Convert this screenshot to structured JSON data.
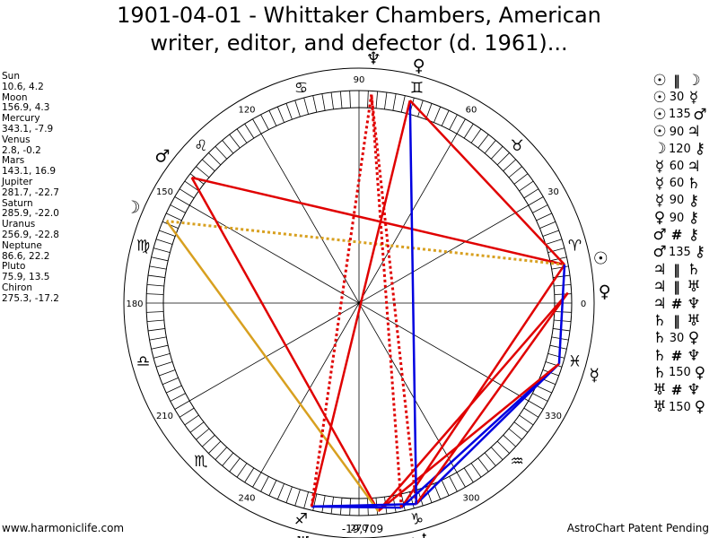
{
  "title": {
    "line1": "1901-04-01 - Whittaker Chambers, American",
    "line2": "writer, editor, and defector (d. 1961)..."
  },
  "positions": [
    {
      "name": "Sun",
      "values": "10.6, 4.2",
      "longitude": 10.6
    },
    {
      "name": "Moon",
      "values": "156.9, 4.3",
      "longitude": 156.9
    },
    {
      "name": "Mercury",
      "values": "343.1, -7.9",
      "longitude": 343.1
    },
    {
      "name": "Venus",
      "values": "2.8, -0.2",
      "longitude": 2.8
    },
    {
      "name": "Mars",
      "values": "143.1, 16.9",
      "longitude": 143.1
    },
    {
      "name": "Jupiter",
      "values": "281.7, -22.7",
      "longitude": 281.7
    },
    {
      "name": "Saturn",
      "values": "285.9, -22.0",
      "longitude": 285.9
    },
    {
      "name": "Uranus",
      "values": "256.9, -22.8",
      "longitude": 256.9
    },
    {
      "name": "Neptune",
      "values": "86.6, 22.2",
      "longitude": 86.6
    },
    {
      "name": "Pluto",
      "values": "75.9, 13.5",
      "longitude": 75.9
    },
    {
      "name": "Chiron",
      "values": "275.3, -17.2",
      "longitude": 275.3
    }
  ],
  "aspects": [
    {
      "p1": "☉",
      "asp": "‖",
      "p2": "☽",
      "sym": true
    },
    {
      "p1": "☉",
      "asp": "30",
      "p2": "☿",
      "sym": false
    },
    {
      "p1": "☉",
      "asp": "135",
      "p2": "♂",
      "sym": false
    },
    {
      "p1": "☉",
      "asp": "90",
      "p2": "♃",
      "sym": false
    },
    {
      "p1": "☽",
      "asp": "120",
      "p2": "⚷",
      "sym": false
    },
    {
      "p1": "☿",
      "asp": "60",
      "p2": "♃",
      "sym": false
    },
    {
      "p1": "☿",
      "asp": "60",
      "p2": "♄",
      "sym": false
    },
    {
      "p1": "☿",
      "asp": "90",
      "p2": "⚷",
      "sym": false
    },
    {
      "p1": "♀",
      "asp": "90",
      "p2": "⚷",
      "sym": false
    },
    {
      "p1": "♂",
      "asp": "#",
      "p2": "⚷",
      "sym": true
    },
    {
      "p1": "♂",
      "asp": "135",
      "p2": "⚷",
      "sym": false
    },
    {
      "p1": "♃",
      "asp": "‖",
      "p2": "♄",
      "sym": true
    },
    {
      "p1": "♃",
      "asp": "‖",
      "p2": "♅",
      "sym": true
    },
    {
      "p1": "♃",
      "asp": "#",
      "p2": "♆",
      "sym": true
    },
    {
      "p1": "♄",
      "asp": "‖",
      "p2": "♅",
      "sym": true
    },
    {
      "p1": "♄",
      "asp": "30",
      "p2": "♀",
      "sym": false
    },
    {
      "p1": "♄",
      "asp": "#",
      "p2": "♆",
      "sym": true
    },
    {
      "p1": "♄",
      "asp": "150",
      "p2": "♀",
      "sym": false
    },
    {
      "p1": "♅",
      "asp": "#",
      "p2": "♆",
      "sym": true
    },
    {
      "p1": "♅",
      "asp": "150",
      "p2": "♀",
      "sym": false
    }
  ],
  "wheel": {
    "degree_labels": [
      "0",
      "30",
      "60",
      "90",
      "120",
      "150",
      "180",
      "210",
      "240",
      "270",
      "300",
      "330"
    ],
    "degree_values": [
      0,
      30,
      60,
      90,
      120,
      150,
      180,
      210,
      240,
      270,
      300,
      330
    ],
    "sign_glyphs": [
      "♈",
      "♉",
      "♊",
      "♋",
      "♌",
      "♍",
      "♎",
      "♏",
      "♐",
      "♑",
      "♒",
      "♓"
    ],
    "planet_glyphs": [
      {
        "name": "sun",
        "glyph": "☉",
        "longitude": 10.6
      },
      {
        "name": "moon",
        "glyph": "☽",
        "longitude": 156.9
      },
      {
        "name": "mercury",
        "glyph": "☿",
        "longitude": 343.1
      },
      {
        "name": "venus",
        "glyph": "♀",
        "longitude": 2.8
      },
      {
        "name": "mars",
        "glyph": "♂",
        "longitude": 143.1
      },
      {
        "name": "jupiter",
        "glyph": "♃",
        "longitude": 281.7
      },
      {
        "name": "saturn",
        "glyph": "♄",
        "longitude": 285.9
      },
      {
        "name": "uranus",
        "glyph": "♅",
        "longitude": 256.9
      },
      {
        "name": "neptune",
        "glyph": "♆",
        "longitude": 86.6
      },
      {
        "name": "pluto",
        "glyph": "♀",
        "longitude": 75.9
      },
      {
        "name": "chiron",
        "glyph": "⚷",
        "longitude": 275.3
      }
    ],
    "center_readout": "-19,709",
    "aspect_lines": [
      {
        "from": 10.6,
        "to": 143.1,
        "color": "#e00000",
        "style": "solid"
      },
      {
        "from": 10.6,
        "to": 156.9,
        "color": "#d8a020",
        "style": "dotted"
      },
      {
        "from": 10.6,
        "to": 281.7,
        "color": "#e00000",
        "style": "solid"
      },
      {
        "from": 343.1,
        "to": 281.7,
        "color": "#0000e0",
        "style": "solid"
      },
      {
        "from": 343.1,
        "to": 285.9,
        "color": "#0000e0",
        "style": "solid"
      },
      {
        "from": 343.1,
        "to": 275.3,
        "color": "#e00000",
        "style": "solid"
      },
      {
        "from": 2.8,
        "to": 275.3,
        "color": "#e00000",
        "style": "solid"
      },
      {
        "from": 2.8,
        "to": 285.9,
        "color": "#e00000",
        "style": "solid"
      },
      {
        "from": 143.1,
        "to": 275.3,
        "color": "#e00000",
        "style": "solid"
      },
      {
        "from": 156.9,
        "to": 275.3,
        "color": "#d8a020",
        "style": "solid"
      },
      {
        "from": 281.7,
        "to": 256.9,
        "color": "#0000e0",
        "style": "solid"
      },
      {
        "from": 285.9,
        "to": 256.9,
        "color": "#0000e0",
        "style": "solid"
      },
      {
        "from": 281.7,
        "to": 86.6,
        "color": "#e00000",
        "style": "dotted"
      },
      {
        "from": 285.9,
        "to": 86.6,
        "color": "#e00000",
        "style": "dotted"
      },
      {
        "from": 256.9,
        "to": 86.6,
        "color": "#e00000",
        "style": "dotted"
      },
      {
        "from": 285.9,
        "to": 75.9,
        "color": "#0000e0",
        "style": "solid"
      },
      {
        "from": 256.9,
        "to": 75.9,
        "color": "#e00000",
        "style": "solid"
      },
      {
        "from": 10.6,
        "to": 75.9,
        "color": "#e00000",
        "style": "solid"
      },
      {
        "from": 343.1,
        "to": 10.6,
        "color": "#0000e0",
        "style": "solid"
      }
    ]
  },
  "footer": {
    "left": "www.harmoniclife.com",
    "right": "AstroChart Patent Pending"
  }
}
